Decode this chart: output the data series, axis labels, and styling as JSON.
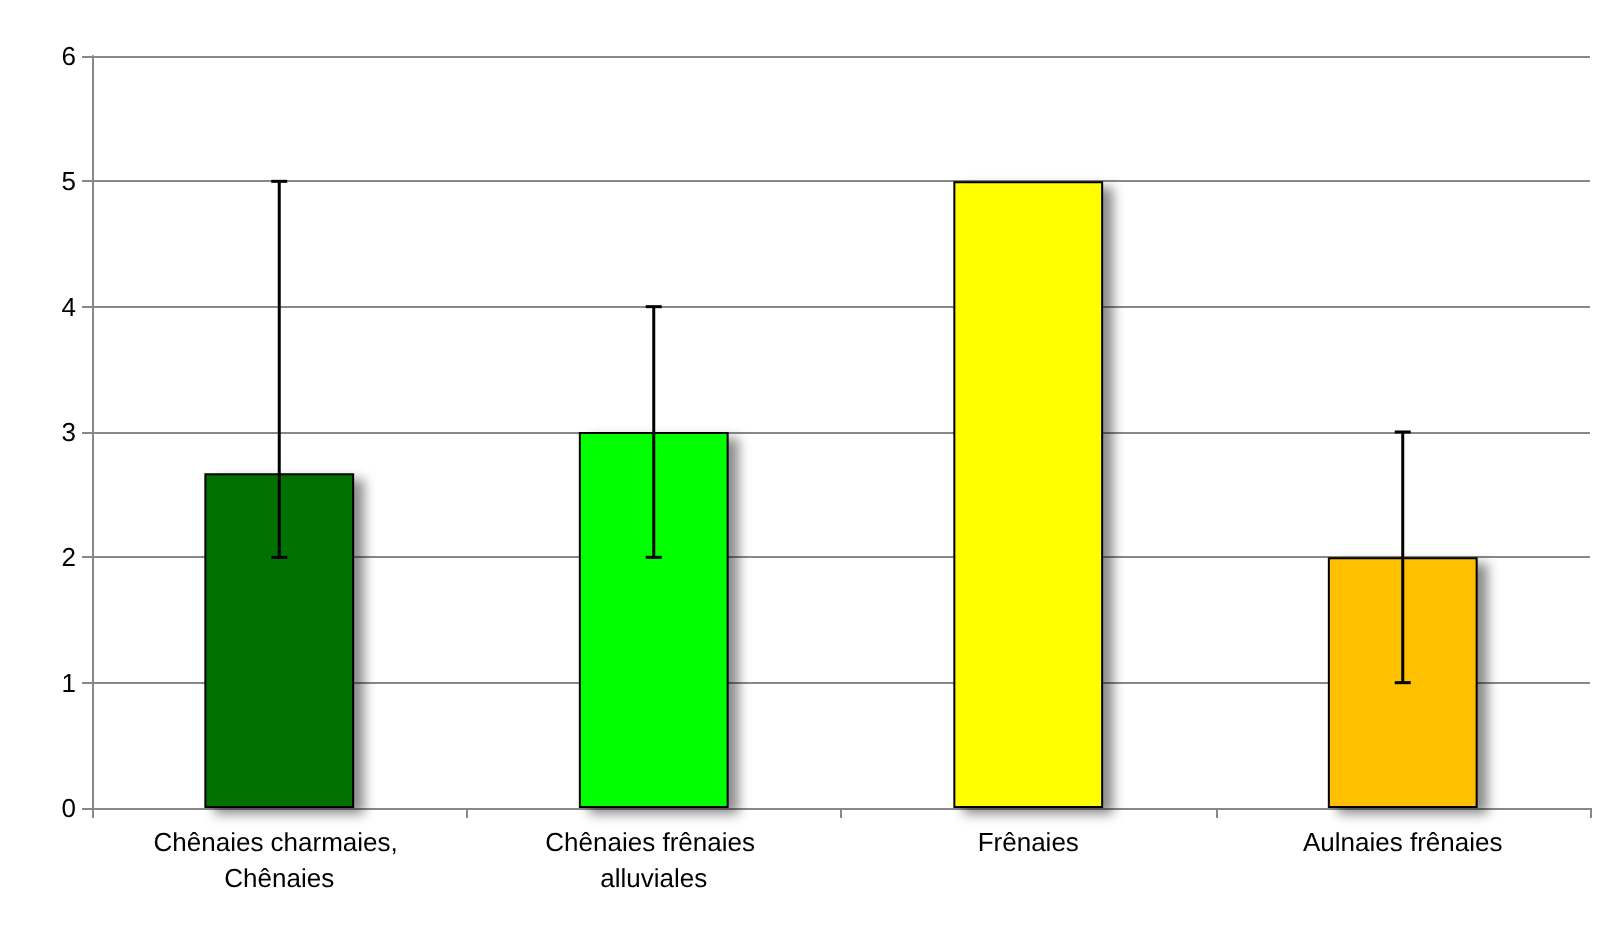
{
  "chart_data": {
    "type": "bar",
    "categories": [
      "Chênaies charmaies, Chênaies",
      "Chênaies frênaies alluviales",
      "Frênaies",
      "Aulnaies frênaies"
    ],
    "values": [
      2.67,
      3,
      5,
      2
    ],
    "colors": [
      "#007000",
      "#00ff00",
      "#ffff00",
      "#ffc000"
    ],
    "errors": [
      [
        2,
        5
      ],
      [
        2,
        4
      ],
      null,
      [
        1,
        3
      ]
    ],
    "ylim": [
      0,
      6
    ],
    "yticks": [
      0,
      1,
      2,
      3,
      4,
      5,
      6
    ],
    "grid": "y"
  }
}
